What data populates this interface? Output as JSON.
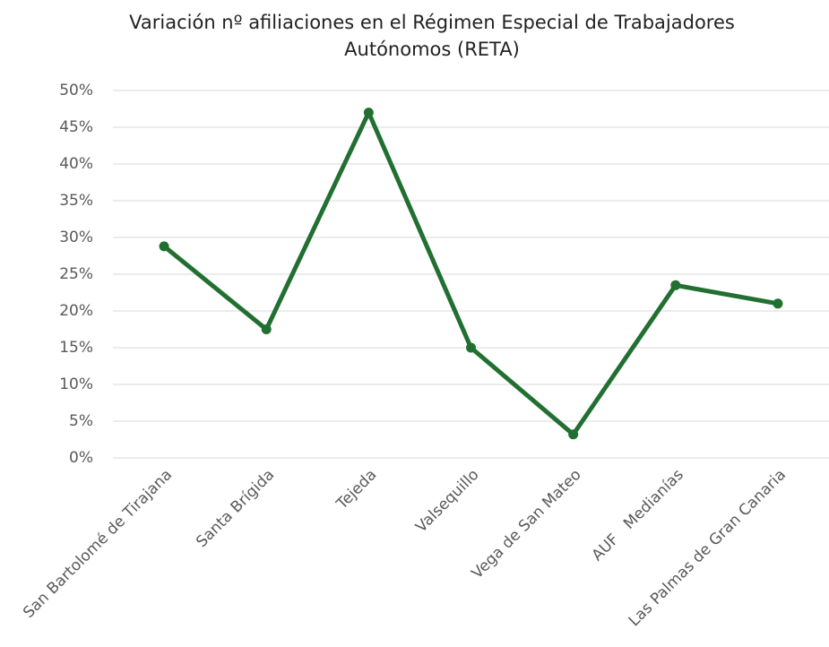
{
  "chart_data": {
    "type": "line",
    "title": "Variación nº afiliaciones en el Régimen Especial de Trabajadores Autónomos (RETA)",
    "categories": [
      "San Bartolomé de Tirajana",
      "Santa Brígida",
      "Tejeda",
      "Valsequillo",
      "Vega de San Mateo",
      "AUF   Medianías",
      "Las Palmas de Gran Canaria"
    ],
    "series": [
      {
        "name": "Variación",
        "color": "#217031",
        "values": [
          28.8,
          17.5,
          47,
          15,
          3.2,
          23.5,
          21
        ]
      }
    ],
    "ylim": [
      0,
      50
    ],
    "yticks": [
      {
        "value": 0,
        "label": "0%"
      },
      {
        "value": 5,
        "label": "5%"
      },
      {
        "value": 10,
        "label": "10%"
      },
      {
        "value": 15,
        "label": "15%"
      },
      {
        "value": 20,
        "label": "20%"
      },
      {
        "value": 25,
        "label": "25%"
      },
      {
        "value": 30,
        "label": "30%"
      },
      {
        "value": 35,
        "label": "35%"
      },
      {
        "value": 40,
        "label": "40%"
      },
      {
        "value": 45,
        "label": "45%"
      },
      {
        "value": 50,
        "label": "50%"
      }
    ],
    "grid": true
  }
}
